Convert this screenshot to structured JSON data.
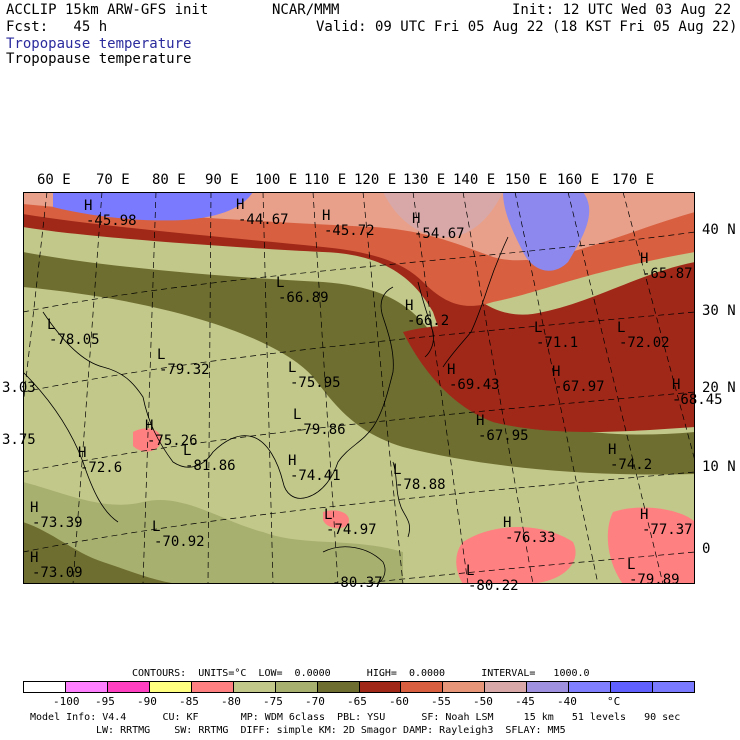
{
  "header": {
    "model": "ACCLIP 15km ARW-GFS init",
    "center": "NCAR/MMM",
    "init": "Init: 12 UTC Wed 03 Aug 22",
    "fcst": "Fcst:   45 h",
    "valid": "Valid: 09 UTC Fri 05 Aug 22 (18 KST Fri 05 Aug 22)",
    "field_title_1": "Tropopause temperature",
    "field_title_2": "Tropopause temperature"
  },
  "map": {
    "lon_labels": [
      "60 E",
      "70 E",
      "80 E",
      "90 E",
      "100 E",
      "110 E",
      "120 E",
      "130 E",
      "140 E",
      "150 E",
      "160 E",
      "170 E"
    ],
    "lat_labels": [
      "40 N",
      "30 N",
      "20 N",
      "10 N",
      "0"
    ],
    "extrema": [
      {
        "type": "H",
        "value": "-45.98"
      },
      {
        "type": "H",
        "value": "-44.67"
      },
      {
        "type": "H",
        "value": "-45.72"
      },
      {
        "type": "H",
        "value": "-54.67"
      },
      {
        "type": "H",
        "value": "-65.87"
      },
      {
        "type": "L",
        "value": "-66.89"
      },
      {
        "type": "L",
        "value": "-78.05"
      },
      {
        "type": "L",
        "value": "-79.32"
      },
      {
        "type": "L",
        "value": "-75.95"
      },
      {
        "type": "H",
        "value": "-66.2"
      },
      {
        "type": "L",
        "value": "-71.1"
      },
      {
        "type": "L",
        "value": "-72.02"
      },
      {
        "type": "H",
        "value": "-69.43"
      },
      {
        "type": "H",
        "value": "-67.97"
      },
      {
        "type": "H",
        "value": "-68.45"
      },
      {
        "type": "H",
        "value": "-75.26"
      },
      {
        "type": "L",
        "value": "-79.86"
      },
      {
        "type": "H",
        "value": "-67.95"
      },
      {
        "type": "H",
        "value": "-72.6"
      },
      {
        "type": "L",
        "value": "-81.86"
      },
      {
        "type": "H",
        "value": "-74.41"
      },
      {
        "type": "L",
        "value": "-78.88"
      },
      {
        "type": "H",
        "value": "-74.2"
      },
      {
        "type": "H",
        "value": "-73.39"
      },
      {
        "type": "L",
        "value": "-70.92"
      },
      {
        "type": "L",
        "value": "-74.97"
      },
      {
        "type": "H",
        "value": "-76.33"
      },
      {
        "type": "H",
        "value": "-77.37"
      },
      {
        "type": "H",
        "value": "-73.09"
      },
      {
        "type": "L",
        "value": "-79.89"
      },
      {
        "type": "L",
        "value": "-80.22"
      },
      {
        "type": "",
        "value": "3.03"
      },
      {
        "type": "",
        "value": "3.75"
      },
      {
        "type": "",
        "value": "-80.37"
      }
    ]
  },
  "contours": {
    "line": "CONTOURS:  UNITS=°C  LOW=  0.0000      HIGH=  0.0000      INTERVAL=   1000.0"
  },
  "colorbar": {
    "colors": [
      "#ffffff",
      "#ff80ff",
      "#ff40c0",
      "#ffff80",
      "#ff8080",
      "#c2c88a",
      "#a8b070",
      "#6e6e30",
      "#a02818",
      "#d86040",
      "#e8967a",
      "#d8a8a8",
      "#a090e0",
      "#8080ff",
      "#6060ff",
      "#7a7aff"
    ],
    "ticks": [
      "-100",
      "-95",
      "-90",
      "-85",
      "-80",
      "-75",
      "-70",
      "-65",
      "-60",
      "-55",
      "-50",
      "-45",
      "-40",
      "°C"
    ]
  },
  "footer": {
    "line1": "Model Info: V4.4      CU: KF       MP: WDM 6class  PBL: YSU      SF: Noah LSM     15 km   51 levels   90 sec",
    "line2": "LW: RRTMG    SW: RRTMG  DIFF: simple KM: 2D Smagor DAMP: Rayleigh3  SFLAY: MM5"
  }
}
